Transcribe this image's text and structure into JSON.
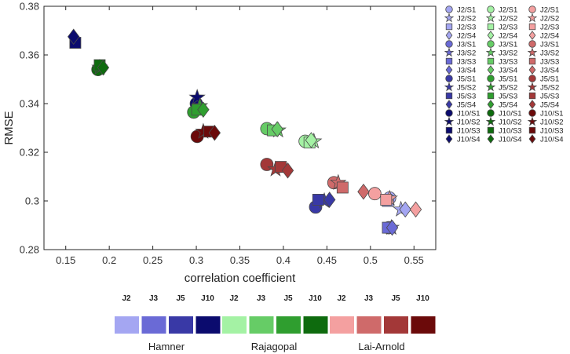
{
  "chart_data": {
    "type": "scatter",
    "xlabel": "correlation coefficient",
    "ylabel": "RMSE",
    "xlim": [
      0.125,
      0.575
    ],
    "ylim": [
      0.28,
      0.38
    ],
    "xticks": [
      0.15,
      0.2,
      0.25,
      0.3,
      0.35,
      0.4,
      0.45,
      0.5,
      0.55
    ],
    "xtick_labels": [
      "0.15",
      "0.2",
      "0.25",
      "0.3",
      "0.35",
      "0.4",
      "0.45",
      "0.5",
      "0.55"
    ],
    "yticks": [
      0.28,
      0.3,
      0.32,
      0.34,
      0.36,
      0.38
    ],
    "ytick_labels": [
      "0.28",
      "0.3",
      "0.32",
      "0.34",
      "0.36",
      "0.38"
    ],
    "grid": false,
    "legend_position": "right",
    "models": [
      "Hamner",
      "Rajagopal",
      "Lai-Arnold"
    ],
    "sets": [
      "J2",
      "J3",
      "J5",
      "J10"
    ],
    "colors": {
      "Hamner": [
        "#a4a6f2",
        "#6a6ad6",
        "#3939a6",
        "#0b0b6e"
      ],
      "Rajagopal": [
        "#a4f2a4",
        "#66cc66",
        "#2f9e2f",
        "#0e6b0e"
      ],
      "Lai-Arnold": [
        "#f4a0a0",
        "#cf6a6a",
        "#a33838",
        "#6b0a0a"
      ]
    },
    "series": [
      {
        "name": "Hamner J2",
        "model": "Hamner",
        "set": "J2",
        "points": [
          [
            0.522,
            0.3012
          ],
          [
            0.535,
            0.2965
          ],
          [
            0.52,
            0.3
          ],
          [
            0.54,
            0.2965
          ]
        ]
      },
      {
        "name": "Hamner J3",
        "model": "Hamner",
        "set": "J3",
        "points": [
          [
            0.521,
            0.289
          ],
          [
            0.524,
            0.289
          ],
          [
            0.52,
            0.289
          ],
          [
            0.525,
            0.289
          ]
        ]
      },
      {
        "name": "Hamner J5",
        "model": "Hamner",
        "set": "J5",
        "points": [
          [
            0.437,
            0.2975
          ],
          [
            0.447,
            0.3
          ],
          [
            0.44,
            0.3005
          ],
          [
            0.453,
            0.3005
          ]
        ]
      },
      {
        "name": "Hamner J10",
        "model": "Hamner",
        "set": "J10",
        "points": [
          [
            0.3,
            0.34
          ],
          [
            0.301,
            0.3425
          ],
          [
            0.161,
            0.365
          ],
          [
            0.159,
            0.3675
          ]
        ]
      },
      {
        "name": "Rajagopal J2",
        "model": "Rajagopal",
        "set": "J2",
        "points": [
          [
            0.425,
            0.3245
          ],
          [
            0.435,
            0.3245
          ],
          [
            0.43,
            0.324
          ],
          [
            0.432,
            0.325
          ]
        ]
      },
      {
        "name": "Rajagopal J3",
        "model": "Rajagopal",
        "set": "J3",
        "points": [
          [
            0.381,
            0.3297
          ],
          [
            0.394,
            0.329
          ],
          [
            0.388,
            0.329
          ],
          [
            0.393,
            0.3295
          ]
        ]
      },
      {
        "name": "Rajagopal J5",
        "model": "Rajagopal",
        "set": "J5",
        "points": [
          [
            0.297,
            0.3365
          ],
          [
            0.304,
            0.339
          ],
          [
            0.301,
            0.3375
          ],
          [
            0.308,
            0.3375
          ]
        ]
      },
      {
        "name": "Rajagopal J10",
        "model": "Rajagopal",
        "set": "J10",
        "points": [
          [
            0.187,
            0.354
          ],
          [
            0.189,
            0.3548
          ],
          [
            0.189,
            0.3558
          ],
          [
            0.193,
            0.3548
          ]
        ]
      },
      {
        "name": "Lai-Arnold J2",
        "model": "Lai-Arnold",
        "set": "J2",
        "points": [
          [
            0.505,
            0.303
          ],
          [
            0.522,
            0.301
          ],
          [
            0.518,
            0.3005
          ],
          [
            0.552,
            0.2965
          ]
        ]
      },
      {
        "name": "Lai-Arnold J3",
        "model": "Lai-Arnold",
        "set": "J3",
        "points": [
          [
            0.458,
            0.3075
          ],
          [
            0.463,
            0.3075
          ],
          [
            0.468,
            0.3055
          ],
          [
            0.492,
            0.3038
          ]
        ]
      },
      {
        "name": "Lai-Arnold J5",
        "model": "Lai-Arnold",
        "set": "J5",
        "points": [
          [
            0.381,
            0.315
          ],
          [
            0.391,
            0.313
          ],
          [
            0.397,
            0.314
          ],
          [
            0.405,
            0.3125
          ]
        ]
      },
      {
        "name": "Lai-Arnold J10",
        "model": "Lai-Arnold",
        "set": "J10",
        "points": [
          [
            0.301,
            0.3265
          ],
          [
            0.308,
            0.3285
          ],
          [
            0.315,
            0.3285
          ],
          [
            0.321,
            0.328
          ]
        ]
      }
    ],
    "legend_entries": [
      [
        "J2/S1",
        "J2/S2",
        "J2/S3",
        "J2/S4",
        "J3/S1",
        "J3/S2",
        "J3/S3",
        "J3/S4",
        "J5/S1",
        "J5/S2",
        "J5/S3",
        "J5/S4",
        "J10/S1",
        "J10/S2",
        "J10/S3",
        "J10/S4"
      ],
      [
        "J2/S1",
        "J2/S2",
        "J2/S3",
        "J2/S4",
        "J3/S1",
        "J3/S2",
        "J3/S3",
        "J3/S4",
        "J5/S1",
        "J5/S2",
        "J5/S3",
        "J5/S4",
        "J10/S1",
        "J10/S2",
        "J10/S3",
        "J10/S4"
      ],
      [
        "J2/S1",
        "J2/S2",
        "J2/S3",
        "J2/S4",
        "J3/S1",
        "J3/S2",
        "J3/S3",
        "J3/S4",
        "J5/S1",
        "J5/S2",
        "J5/S3",
        "J5/S4",
        "J10/S1",
        "J10/S2",
        "J10/S3",
        "J10/S4"
      ]
    ],
    "color_key": {
      "headers": [
        "J2",
        "J3",
        "J5",
        "J10"
      ],
      "groups": [
        "Hamner",
        "Rajagopal",
        "Lai-Arnold"
      ]
    }
  }
}
